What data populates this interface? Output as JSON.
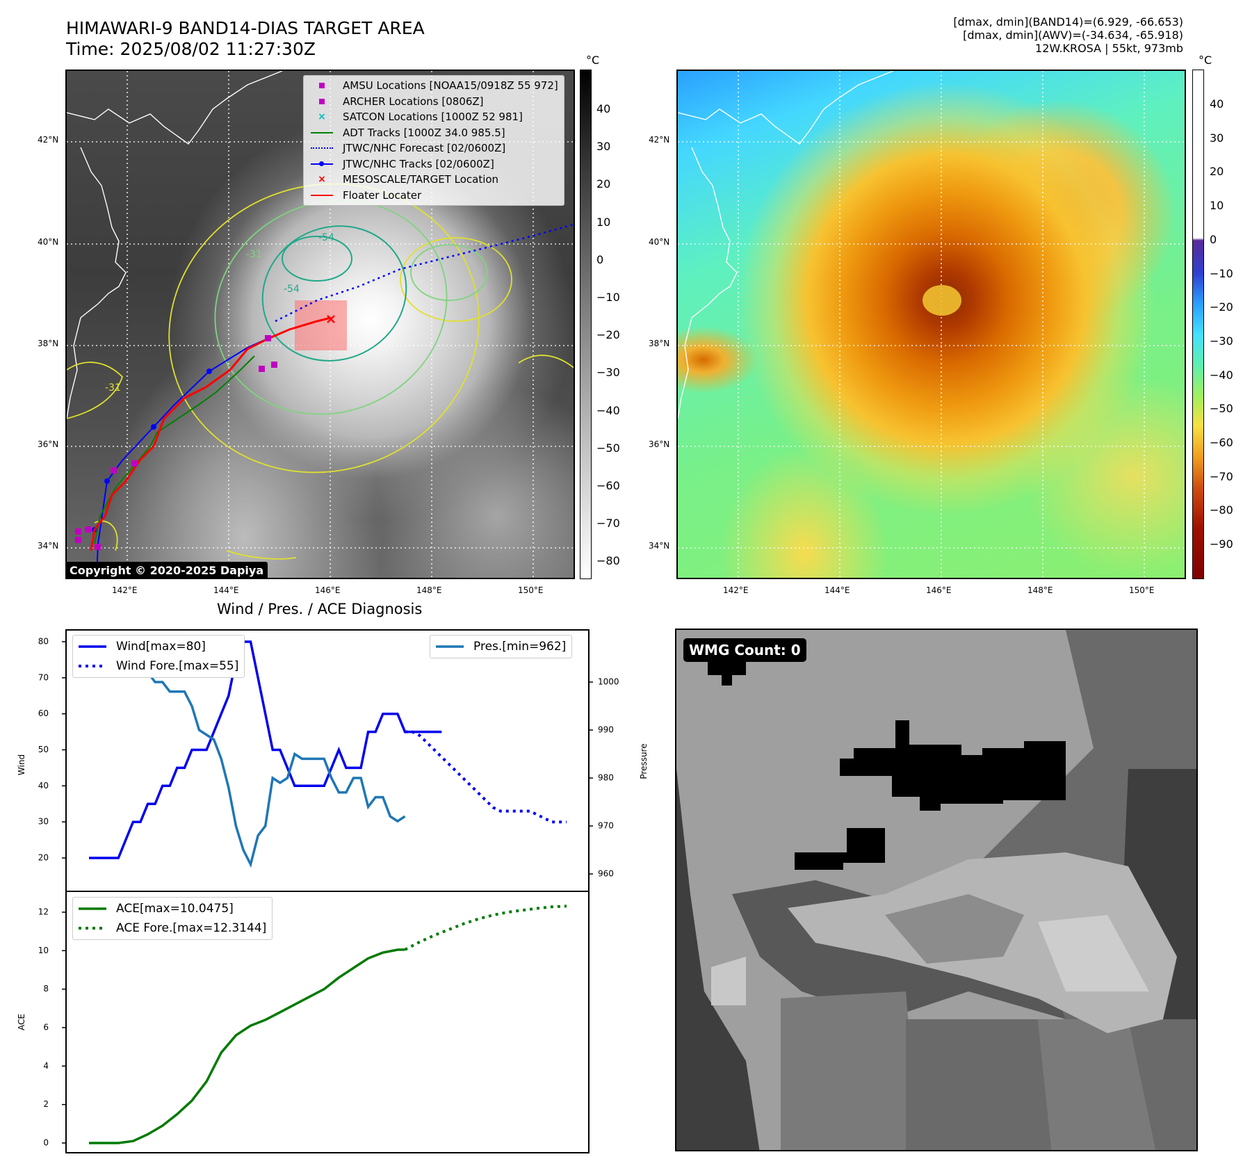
{
  "header": {
    "title_line1": "HIMAWARI-9 BAND14-DIAS TARGET AREA",
    "title_line2": "Time: 2025/08/02 11:27:30Z",
    "info_line1": "[dmax, dmin](BAND14)=(6.929, -66.653)",
    "info_line2": "[dmax, dmin](AWV)=(-34.634, -65.918)",
    "info_line3": "12W.KROSA | 55kt, 973mb"
  },
  "map_axes": {
    "lat_labels": [
      "42°N",
      "40°N",
      "38°N",
      "36°N",
      "34°N"
    ],
    "lon_labels": [
      "142°E",
      "144°E",
      "146°E",
      "148°E",
      "150°E"
    ]
  },
  "ir_panel": {
    "legend": [
      {
        "label": "AMSU Locations [NOAA15/0918Z 55 972]",
        "marker": "square",
        "color": "#c000c0"
      },
      {
        "label": "ARCHER Locations [0806Z]",
        "marker": "square",
        "color": "#c000c0"
      },
      {
        "label": "SATCON Locations [1000Z 52 981]",
        "marker": "x",
        "color": "#00bfbf"
      },
      {
        "label": "ADT Tracks [1000Z 34.0 985.5]",
        "marker": "line",
        "color": "#008000"
      },
      {
        "label": "JTWC/NHC Forecast [02/0600Z]",
        "marker": "dotted",
        "color": "#0000ff"
      },
      {
        "label": "JTWC/NHC Tracks [02/0600Z]",
        "marker": "line-dot",
        "color": "#0000ff"
      },
      {
        "label": "MESOSCALE/TARGET Location",
        "marker": "x",
        "color": "#ff0000"
      },
      {
        "label": "Floater Locater",
        "marker": "line",
        "color": "#ff0000"
      }
    ],
    "copyright": "Copyright © 2020-2025 Dapiya",
    "colorbar_unit": "°C",
    "colorbar_ticks": [
      "40",
      "30",
      "20",
      "10",
      "0",
      "−10",
      "−20",
      "−30",
      "−40",
      "−50",
      "−60",
      "−70",
      "−80"
    ],
    "contour_labels": [
      "-54",
      "-31",
      "-31",
      "-54"
    ]
  },
  "awv_panel": {
    "colorbar_unit": "°C",
    "colorbar_ticks": [
      "40",
      "30",
      "20",
      "10",
      "0",
      "−10",
      "−20",
      "−30",
      "−40",
      "−50",
      "−60",
      "−70",
      "−80",
      "−90"
    ]
  },
  "diag_panel": {
    "title": "Wind / Pres. / ACE Diagnosis",
    "wind_ylabel": "Wind",
    "pres_ylabel": "Pressure",
    "ace_ylabel": "ACE",
    "wind_ticks": [
      "80",
      "70",
      "60",
      "50",
      "40",
      "30",
      "20"
    ],
    "pres_ticks": [
      "1000",
      "990",
      "980",
      "970",
      "960"
    ],
    "ace_ticks": [
      "12",
      "10",
      "8",
      "6",
      "4",
      "2",
      "0"
    ],
    "legend_wind": "Wind[max=80]",
    "legend_wind_fore": "Wind Fore.[max=55]",
    "legend_pres": "Pres.[min=962]",
    "legend_ace": "ACE[max=10.0475]",
    "legend_ace_fore": "ACE Fore.[max=12.3144]"
  },
  "wmg_panel": {
    "label": "WMG Count: 0"
  },
  "colors": {
    "wind": "#0000ee",
    "pressure": "#1f77b4",
    "ace": "#007a00"
  },
  "chart_data": [
    {
      "type": "line",
      "title": "Wind / Pres. / ACE Diagnosis",
      "ylabel": "Wind",
      "ylim": [
        18,
        82
      ],
      "series": [
        {
          "name": "Wind[max=80]",
          "x": [
            0,
            1,
            2,
            3,
            4,
            5,
            6,
            7,
            8,
            9,
            10,
            11,
            12,
            13,
            14,
            15,
            16,
            17,
            18,
            19,
            20,
            21,
            22,
            23,
            24,
            25,
            26,
            27,
            28,
            29,
            30,
            31,
            32,
            33,
            34,
            35,
            36,
            37,
            38,
            39,
            40,
            41,
            42,
            43,
            44,
            45,
            46,
            47,
            48
          ],
          "values": [
            20,
            20,
            20,
            20,
            20,
            25,
            30,
            30,
            35,
            35,
            40,
            40,
            45,
            45,
            50,
            50,
            50,
            55,
            60,
            65,
            75,
            80,
            80,
            70,
            60,
            50,
            50,
            45,
            40,
            40,
            40,
            40,
            40,
            45,
            50,
            45,
            45,
            45,
            55,
            55,
            60,
            60,
            60,
            55,
            55,
            55,
            55,
            55,
            55
          ]
        },
        {
          "name": "Wind Fore.[max=55]",
          "x": [
            43,
            44,
            45,
            46,
            47,
            48,
            49,
            50,
            51,
            52,
            53,
            54,
            55,
            56,
            57,
            58,
            59,
            60,
            61,
            62,
            63,
            64,
            65
          ],
          "values": [
            55,
            55,
            54,
            52,
            50,
            48,
            46,
            44,
            42,
            40,
            38,
            36,
            34,
            33,
            33,
            33,
            33,
            33,
            32,
            31,
            30,
            30,
            30
          ]
        }
      ]
    },
    {
      "type": "line",
      "ylabel": "Pressure",
      "ylim": [
        960,
        1008
      ],
      "series": [
        {
          "name": "Pres.[min=962]",
          "x": [
            0,
            1,
            2,
            3,
            4,
            5,
            6,
            7,
            8,
            9,
            10,
            11,
            12,
            13,
            14,
            15,
            16,
            17,
            18,
            19,
            20,
            21,
            22,
            23,
            24,
            25,
            26,
            27,
            28,
            29,
            30,
            31,
            32,
            33,
            34,
            35,
            36,
            37,
            38,
            39,
            40,
            41,
            42,
            43
          ],
          "values": [
            1007,
            1007,
            1007,
            1007,
            1005,
            1005,
            1004,
            1002,
            1002,
            1000,
            1000,
            998,
            998,
            998,
            995,
            990,
            989,
            988,
            984,
            978,
            970,
            965,
            962,
            968,
            970,
            980,
            979,
            980,
            985,
            984,
            984,
            984,
            984,
            980,
            977,
            977,
            980,
            980,
            974,
            976,
            976,
            972,
            971,
            972
          ]
        }
      ]
    },
    {
      "type": "line",
      "ylabel": "ACE",
      "ylim": [
        -0.5,
        12.8
      ],
      "series": [
        {
          "name": "ACE[max=10.0475]",
          "x": [
            0,
            2,
            4,
            6,
            8,
            10,
            12,
            14,
            16,
            18,
            20,
            22,
            24,
            26,
            28,
            30,
            32,
            34,
            36,
            38,
            40,
            42,
            43
          ],
          "values": [
            0,
            0,
            0,
            0.1,
            0.45,
            0.9,
            1.5,
            2.2,
            3.2,
            4.7,
            5.6,
            6.1,
            6.4,
            6.8,
            7.2,
            7.6,
            8.0,
            8.6,
            9.1,
            9.6,
            9.9,
            10.0475,
            10.05
          ]
        },
        {
          "name": "ACE Fore.[max=12.3144]",
          "x": [
            43,
            45,
            47,
            49,
            51,
            53,
            55,
            57,
            59,
            61,
            63,
            65
          ],
          "values": [
            10.05,
            10.45,
            10.8,
            11.1,
            11.4,
            11.65,
            11.85,
            12.0,
            12.1,
            12.2,
            12.28,
            12.3144
          ]
        }
      ]
    }
  ]
}
